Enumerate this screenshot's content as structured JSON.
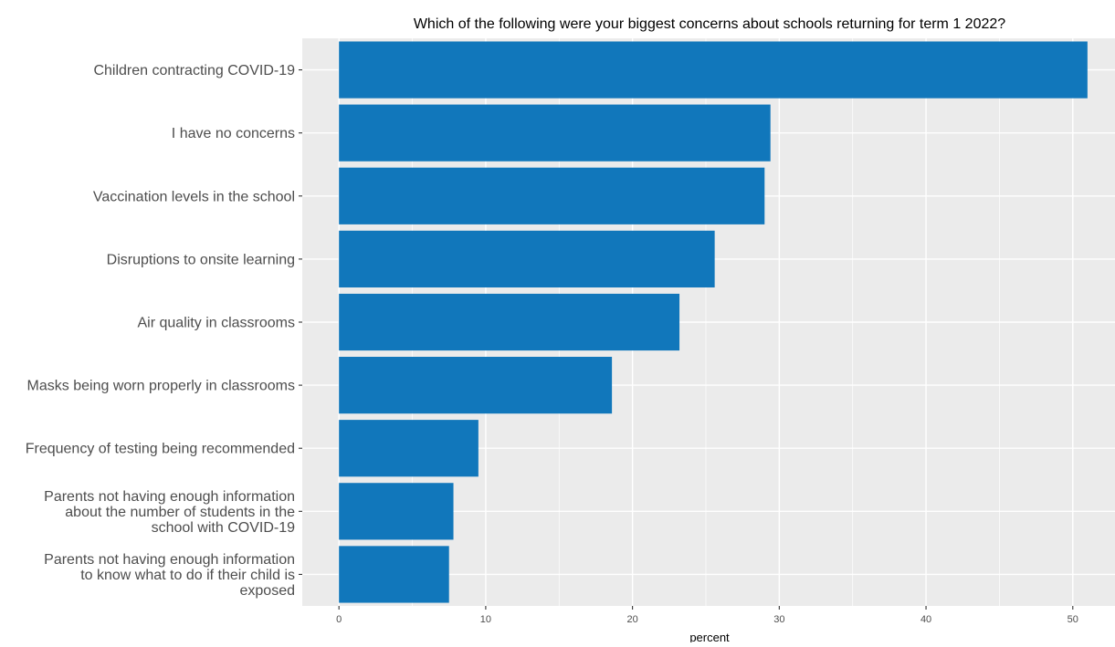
{
  "chart_data": {
    "type": "bar",
    "orientation": "horizontal",
    "title": "Which of the following were your biggest concerns about schools returning for term 1 2022?",
    "xlabel": "percent",
    "ylabel": "",
    "categories": [
      [
        "Children contracting COVID-19"
      ],
      [
        "I have no concerns"
      ],
      [
        "Vaccination levels in the school"
      ],
      [
        "Disruptions to onsite learning"
      ],
      [
        "Air quality in classrooms"
      ],
      [
        "Masks being worn properly in classrooms"
      ],
      [
        "Frequency of testing being recommended"
      ],
      [
        "Parents not having enough information",
        "about the number of students in the",
        "school with COVID-19"
      ],
      [
        "Parents not having enough information",
        "to know what to do if their child is",
        "exposed"
      ]
    ],
    "values": [
      51.0,
      29.4,
      29.0,
      25.6,
      23.2,
      18.6,
      9.5,
      7.8,
      7.5
    ],
    "xlim": [
      -2.5,
      53.0
    ],
    "xticks": [
      0,
      10,
      20,
      30,
      40,
      50
    ],
    "grid": true,
    "legend": "none",
    "colors": {
      "bar": "#1177bb",
      "panel": "#ebebeb",
      "grid": "#ffffff"
    }
  }
}
